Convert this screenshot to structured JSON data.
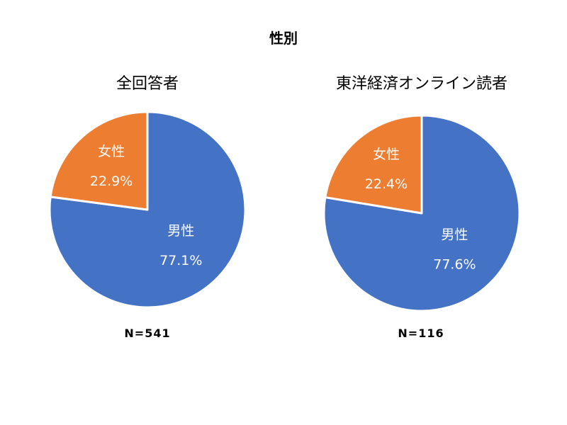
{
  "title": "性別",
  "colors": {
    "male": "#4472C4",
    "female": "#ED7D31",
    "label": "#ffffff"
  },
  "chart_data": [
    {
      "type": "pie",
      "title": "全回答者",
      "n_label": "N=541",
      "slices": [
        {
          "label": "男性",
          "value": 77.1,
          "value_label": "77.1%",
          "color": "#4472C4"
        },
        {
          "label": "女性",
          "value": 22.9,
          "value_label": "22.9%",
          "color": "#ED7D31"
        }
      ]
    },
    {
      "type": "pie",
      "title": "東洋経済オンライン読者",
      "n_label": "N=116",
      "slices": [
        {
          "label": "男性",
          "value": 77.6,
          "value_label": "77.6%",
          "color": "#4472C4"
        },
        {
          "label": "女性",
          "value": 22.4,
          "value_label": "22.4%",
          "color": "#ED7D31"
        }
      ]
    }
  ]
}
